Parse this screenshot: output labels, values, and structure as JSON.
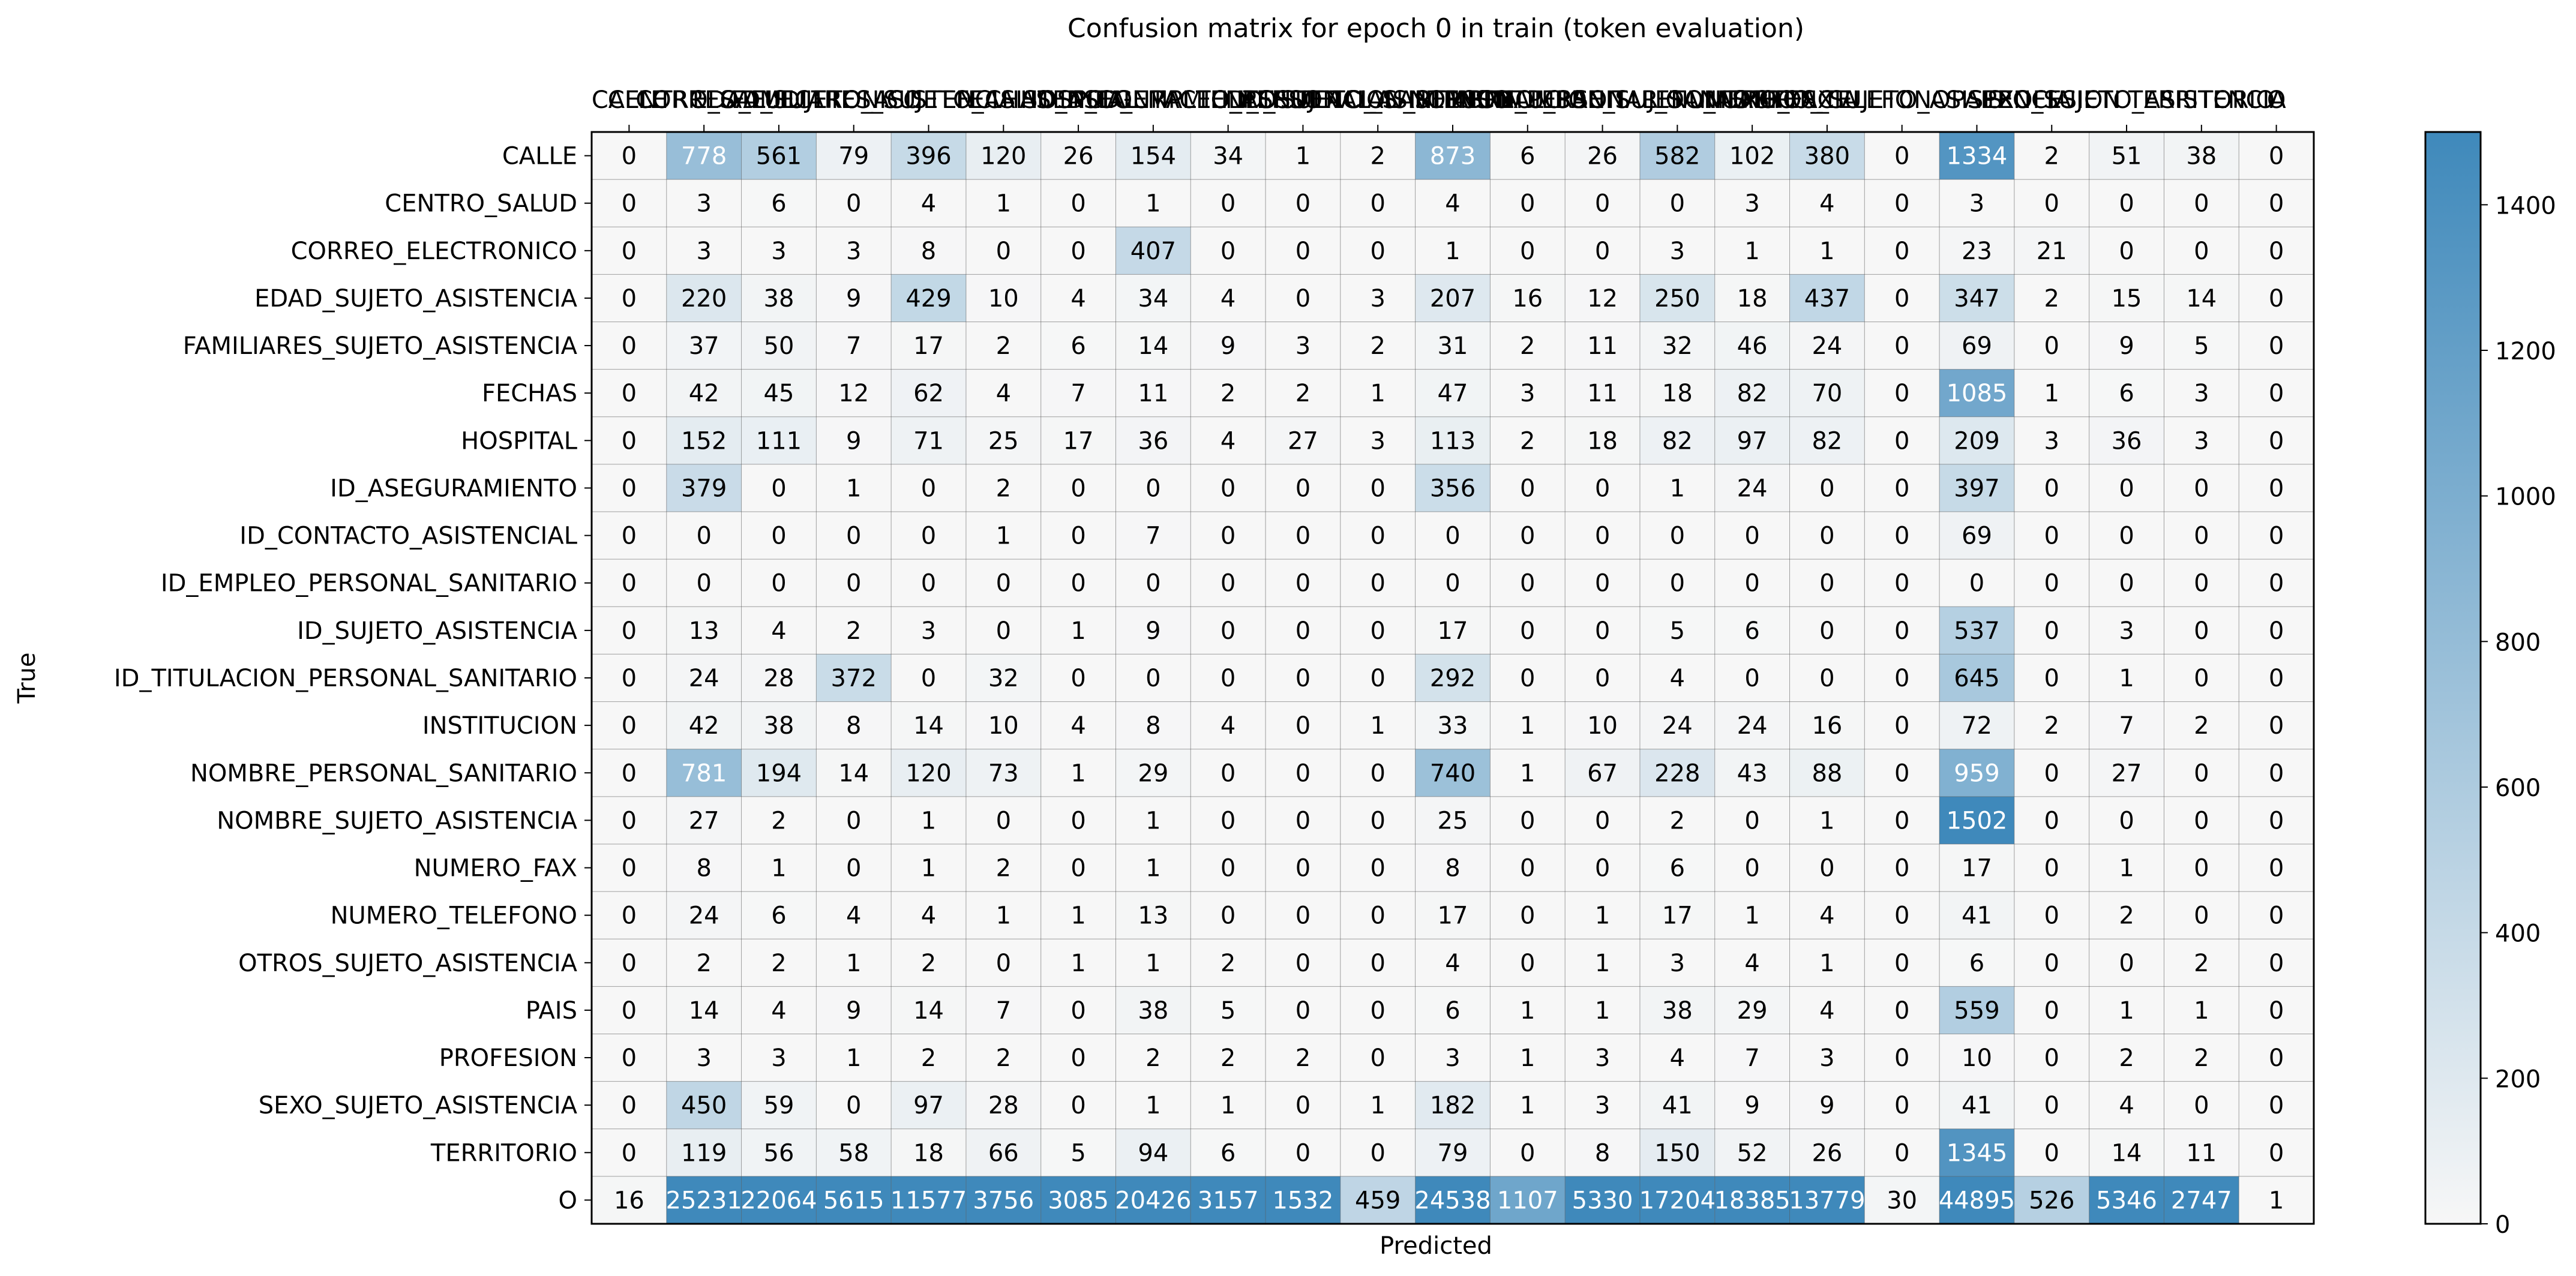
{
  "chart_data": {
    "type": "heatmap",
    "title": "Confusion matrix for epoch 0 in train (token evaluation)",
    "xlabel": "Predicted",
    "ylabel": "True",
    "labels": [
      "CALLE",
      "CENTRO_SALUD",
      "CORREO_ELECTRONICO",
      "EDAD_SUJETO_ASISTENCIA",
      "FAMILIARES_SUJETO_ASISTENCIA",
      "FECHAS",
      "HOSPITAL",
      "ID_ASEGURAMIENTO",
      "ID_CONTACTO_ASISTENCIAL",
      "ID_EMPLEO_PERSONAL_SANITARIO",
      "ID_SUJETO_ASISTENCIA",
      "ID_TITULACION_PERSONAL_SANITARIO",
      "INSTITUCION",
      "NOMBRE_PERSONAL_SANITARIO",
      "NOMBRE_SUJETO_ASISTENCIA",
      "NUMERO_FAX",
      "NUMERO_TELEFONO",
      "OTROS_SUJETO_ASISTENCIA",
      "PAIS",
      "PROFESION",
      "SEXO_SUJETO_ASISTENCIA",
      "TERRITORIO",
      "O"
    ],
    "matrix": [
      [
        0,
        778,
        561,
        79,
        396,
        120,
        26,
        154,
        34,
        1,
        2,
        873,
        6,
        26,
        582,
        102,
        380,
        0,
        1334,
        2,
        51,
        38,
        0
      ],
      [
        0,
        3,
        6,
        0,
        4,
        1,
        0,
        1,
        0,
        0,
        0,
        4,
        0,
        0,
        0,
        3,
        4,
        0,
        3,
        0,
        0,
        0,
        0
      ],
      [
        0,
        3,
        3,
        3,
        8,
        0,
        0,
        407,
        0,
        0,
        0,
        1,
        0,
        0,
        3,
        1,
        1,
        0,
        23,
        21,
        0,
        0,
        0
      ],
      [
        0,
        220,
        38,
        9,
        429,
        10,
        4,
        34,
        4,
        0,
        3,
        207,
        16,
        12,
        250,
        18,
        437,
        0,
        347,
        2,
        15,
        14,
        0
      ],
      [
        0,
        37,
        50,
        7,
        17,
        2,
        6,
        14,
        9,
        3,
        2,
        31,
        2,
        11,
        32,
        46,
        24,
        0,
        69,
        0,
        9,
        5,
        0
      ],
      [
        0,
        42,
        45,
        12,
        62,
        4,
        7,
        11,
        2,
        2,
        1,
        47,
        3,
        11,
        18,
        82,
        70,
        0,
        1085,
        1,
        6,
        3,
        0
      ],
      [
        0,
        152,
        111,
        9,
        71,
        25,
        17,
        36,
        4,
        27,
        3,
        113,
        2,
        18,
        82,
        97,
        82,
        0,
        209,
        3,
        36,
        3,
        0
      ],
      [
        0,
        379,
        0,
        1,
        0,
        2,
        0,
        0,
        0,
        0,
        0,
        356,
        0,
        0,
        1,
        24,
        0,
        0,
        397,
        0,
        0,
        0,
        0
      ],
      [
        0,
        0,
        0,
        0,
        0,
        1,
        0,
        7,
        0,
        0,
        0,
        0,
        0,
        0,
        0,
        0,
        0,
        0,
        69,
        0,
        0,
        0,
        0
      ],
      [
        0,
        0,
        0,
        0,
        0,
        0,
        0,
        0,
        0,
        0,
        0,
        0,
        0,
        0,
        0,
        0,
        0,
        0,
        0,
        0,
        0,
        0,
        0
      ],
      [
        0,
        13,
        4,
        2,
        3,
        0,
        1,
        9,
        0,
        0,
        0,
        17,
        0,
        0,
        5,
        6,
        0,
        0,
        537,
        0,
        3,
        0,
        0
      ],
      [
        0,
        24,
        28,
        372,
        0,
        32,
        0,
        0,
        0,
        0,
        0,
        292,
        0,
        0,
        4,
        0,
        0,
        0,
        645,
        0,
        1,
        0,
        0
      ],
      [
        0,
        42,
        38,
        8,
        14,
        10,
        4,
        8,
        4,
        0,
        1,
        33,
        1,
        10,
        24,
        24,
        16,
        0,
        72,
        2,
        7,
        2,
        0
      ],
      [
        0,
        781,
        194,
        14,
        120,
        73,
        1,
        29,
        0,
        0,
        0,
        740,
        1,
        67,
        228,
        43,
        88,
        0,
        959,
        0,
        27,
        0,
        0
      ],
      [
        0,
        27,
        2,
        0,
        1,
        0,
        0,
        1,
        0,
        0,
        0,
        25,
        0,
        0,
        2,
        0,
        1,
        0,
        1502,
        0,
        0,
        0,
        0
      ],
      [
        0,
        8,
        1,
        0,
        1,
        2,
        0,
        1,
        0,
        0,
        0,
        8,
        0,
        0,
        6,
        0,
        0,
        0,
        17,
        0,
        1,
        0,
        0
      ],
      [
        0,
        24,
        6,
        4,
        4,
        1,
        1,
        13,
        0,
        0,
        0,
        17,
        0,
        1,
        17,
        1,
        4,
        0,
        41,
        0,
        2,
        0,
        0
      ],
      [
        0,
        2,
        2,
        1,
        2,
        0,
        1,
        1,
        2,
        0,
        0,
        4,
        0,
        1,
        3,
        4,
        1,
        0,
        6,
        0,
        0,
        2,
        0
      ],
      [
        0,
        14,
        4,
        9,
        14,
        7,
        0,
        38,
        5,
        0,
        0,
        6,
        1,
        1,
        38,
        29,
        4,
        0,
        559,
        0,
        1,
        1,
        0
      ],
      [
        0,
        3,
        3,
        1,
        2,
        2,
        0,
        2,
        2,
        2,
        0,
        3,
        1,
        3,
        4,
        7,
        3,
        0,
        10,
        0,
        2,
        2,
        0
      ],
      [
        0,
        450,
        59,
        0,
        97,
        28,
        0,
        1,
        1,
        0,
        1,
        182,
        1,
        3,
        41,
        9,
        9,
        0,
        41,
        0,
        4,
        0,
        0
      ],
      [
        0,
        119,
        56,
        58,
        18,
        66,
        5,
        94,
        6,
        0,
        0,
        79,
        0,
        8,
        150,
        52,
        26,
        0,
        1345,
        0,
        14,
        11,
        0
      ],
      [
        16,
        25231,
        22064,
        5615,
        11577,
        3756,
        3085,
        20426,
        3157,
        1532,
        459,
        24538,
        1107,
        5330,
        17204,
        18385,
        13779,
        30,
        44895,
        526,
        5346,
        2747,
        1
      ]
    ],
    "color_scale": {
      "min": 0,
      "max": 1500,
      "low_color": "#f7f7f7",
      "high_color": "#3f89bb",
      "ticks": [
        0,
        200,
        400,
        600,
        800,
        1000,
        1200,
        1400
      ]
    },
    "grid": true
  }
}
